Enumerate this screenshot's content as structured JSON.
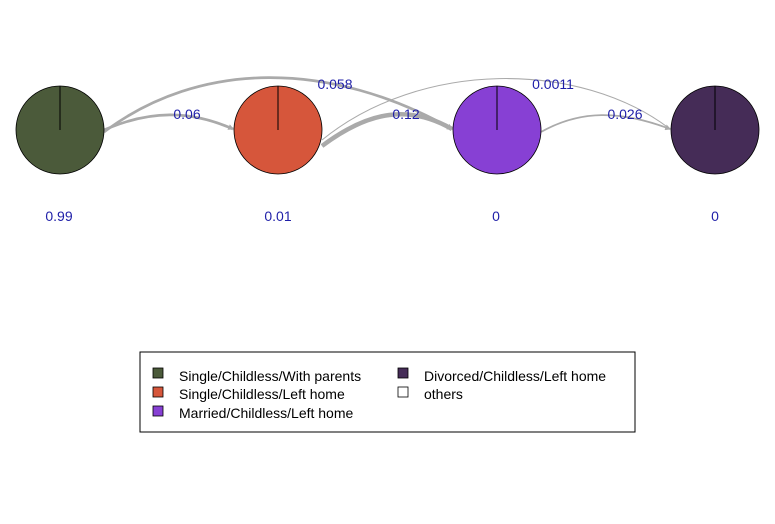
{
  "diagram": {
    "nodes": [
      {
        "name": "Single/Childless/With parents",
        "color": "#4b5a3a",
        "prob": "0.99"
      },
      {
        "name": "Single/Childless/Left home",
        "color": "#d6563b",
        "prob": "0.01"
      },
      {
        "name": "Married/Childless/Left home",
        "color": "#8740d4",
        "prob": "0"
      },
      {
        "name": "Divorced/Childless/Left home",
        "color": "#452c57",
        "prob": "0"
      }
    ],
    "edges": [
      {
        "from": 0,
        "to": 1,
        "label": "0.06",
        "weight": 0.06
      },
      {
        "from": 0,
        "to": 2,
        "label": "0.058",
        "weight": 0.058
      },
      {
        "from": 1,
        "to": 2,
        "label": "0.12",
        "weight": 0.12
      },
      {
        "from": 1,
        "to": 3,
        "label": "0.0011",
        "weight": 0.0011
      },
      {
        "from": 2,
        "to": 3,
        "label": "0.026",
        "weight": 0.026
      }
    ],
    "legend": [
      {
        "label": "Single/Childless/With parents",
        "color": "#4b5a3a"
      },
      {
        "label": "Single/Childless/Left home",
        "color": "#d6563b"
      },
      {
        "label": "Married/Childless/Left home",
        "color": "#8740d4"
      },
      {
        "label": "Divorced/Childless/Left home",
        "color": "#452c57"
      },
      {
        "label": "others",
        "color": "#ffffff"
      }
    ]
  }
}
